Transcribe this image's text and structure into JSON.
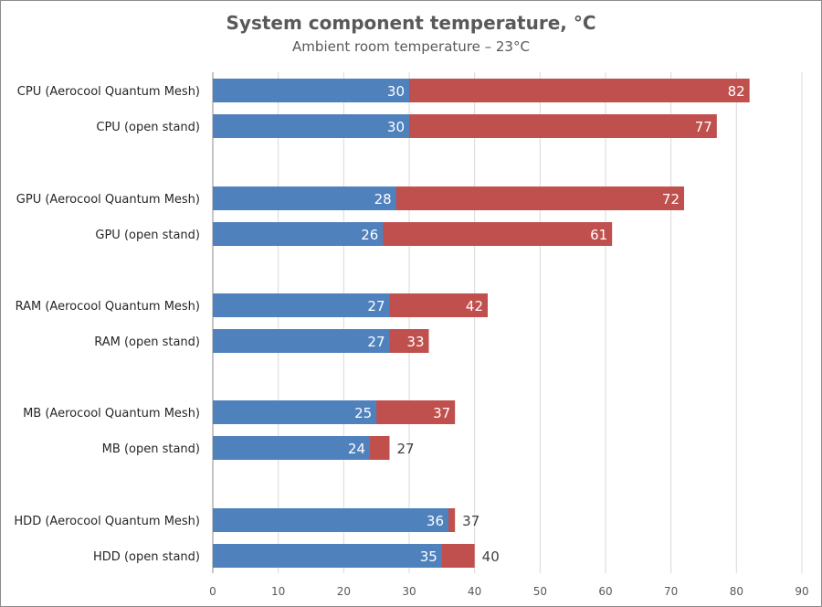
{
  "chart_data": {
    "type": "bar",
    "orientation": "horizontal",
    "title": "System component temperature, °C",
    "subtitle": "Ambient room temperature – 23°C",
    "xlabel": "",
    "ylabel": "",
    "xlim": [
      0,
      90
    ],
    "xticks": [
      0,
      10,
      20,
      30,
      40,
      50,
      60,
      70,
      80,
      90
    ],
    "grid": true,
    "legend": "none",
    "overlap": true,
    "categories": [
      "CPU (Aerocool Quantum Mesh)",
      "CPU (open stand)",
      "GPU (Aerocool Quantum Mesh)",
      "GPU (open stand)",
      "RAM (Aerocool Quantum Mesh)",
      "RAM (open stand)",
      "MB (Aerocool Quantum Mesh)",
      "MB (open stand)",
      "HDD (Aerocool Quantum Mesh)",
      "HDD (open stand)"
    ],
    "series": [
      {
        "key": "low",
        "color": "#4f81bd",
        "values": [
          30,
          30,
          28,
          26,
          27,
          27,
          25,
          24,
          36,
          35
        ]
      },
      {
        "key": "high",
        "color": "#c0504d",
        "values": [
          82,
          77,
          72,
          61,
          42,
          33,
          37,
          27,
          37,
          40
        ]
      }
    ]
  }
}
